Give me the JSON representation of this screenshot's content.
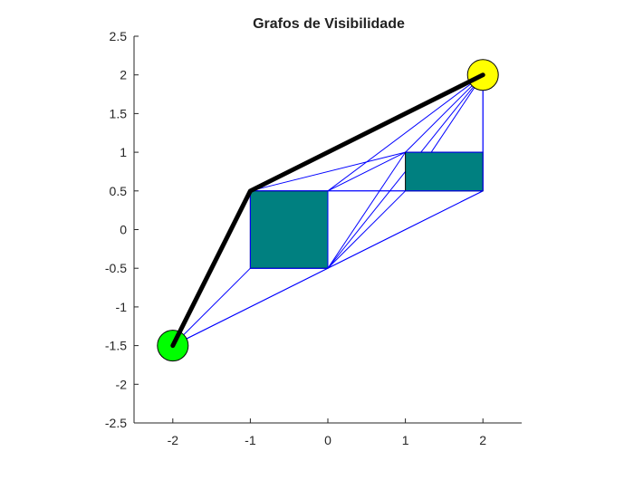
{
  "chart_data": {
    "type": "scatter",
    "title": "Grafos de Visibilidade",
    "xlabel": "",
    "ylabel": "",
    "xlim": [
      -2.5,
      2.5
    ],
    "ylim": [
      -2.5,
      2.5
    ],
    "x_ticks": [
      -2,
      -1,
      0,
      1,
      2
    ],
    "x_tick_labels": [
      "-2",
      "-1",
      "0",
      "1",
      "2"
    ],
    "y_ticks": [
      2.5,
      2,
      1.5,
      1,
      0.5,
      0,
      -0.5,
      -1,
      -1.5,
      -2,
      -2.5
    ],
    "y_tick_labels": [
      "2.5",
      "2",
      "1.5",
      "1",
      "0.5",
      "0",
      "-0.5",
      "-1",
      "-1.5",
      "-2",
      "-2.5"
    ],
    "grid": false,
    "obstacles": [
      {
        "name": "obstacle-1",
        "x": [
          -1,
          0
        ],
        "y": [
          -0.5,
          0.5
        ],
        "color": "#008080"
      },
      {
        "name": "obstacle-2",
        "x": [
          1,
          2
        ],
        "y": [
          0.5,
          1
        ],
        "color": "#008080"
      }
    ],
    "start": {
      "x": -2,
      "y": -1.5,
      "color": "#00ff00"
    },
    "goal": {
      "x": 2,
      "y": 2,
      "color": "#ffff00"
    },
    "visibility_edges_color": "#0000ff",
    "visibility_edges": [
      [
        [
          -2,
          -1.5
        ],
        [
          -1,
          0.5
        ]
      ],
      [
        [
          -2,
          -1.5
        ],
        [
          -1,
          -0.5
        ]
      ],
      [
        [
          -2,
          -1.5
        ],
        [
          0,
          -0.5
        ]
      ],
      [
        [
          -2,
          -1.5
        ],
        [
          2,
          0.5
        ]
      ],
      [
        [
          -1,
          0.5
        ],
        [
          0,
          0.5
        ]
      ],
      [
        [
          -1,
          0.5
        ],
        [
          1,
          1
        ]
      ],
      [
        [
          -1,
          0.5
        ],
        [
          2,
          2
        ]
      ],
      [
        [
          -1,
          0.5
        ],
        [
          -1,
          -0.5
        ]
      ],
      [
        [
          -1,
          -0.5
        ],
        [
          0,
          -0.5
        ]
      ],
      [
        [
          0,
          0.5
        ],
        [
          0,
          -0.5
        ]
      ],
      [
        [
          0,
          0.5
        ],
        [
          1,
          0.5
        ]
      ],
      [
        [
          0,
          0.5
        ],
        [
          1,
          1
        ]
      ],
      [
        [
          0,
          0.5
        ],
        [
          2,
          2
        ]
      ],
      [
        [
          0,
          -0.5
        ],
        [
          1,
          1
        ]
      ],
      [
        [
          0,
          -0.5
        ],
        [
          1,
          0.5
        ]
      ],
      [
        [
          0,
          -0.5
        ],
        [
          2,
          2
        ]
      ],
      [
        [
          0,
          -0.5
        ],
        [
          2,
          0.5
        ]
      ],
      [
        [
          1,
          1
        ],
        [
          2,
          2
        ]
      ],
      [
        [
          1,
          1
        ],
        [
          2,
          1
        ]
      ],
      [
        [
          1,
          0.5
        ],
        [
          2,
          0.5
        ]
      ],
      [
        [
          1,
          0.5
        ],
        [
          2,
          2
        ]
      ],
      [
        [
          2,
          1
        ],
        [
          2,
          2
        ]
      ],
      [
        [
          2,
          1
        ],
        [
          2,
          0.5
        ]
      ]
    ],
    "path_color": "#000000",
    "shortest_path": [
      [
        -2,
        -1.5
      ],
      [
        -1,
        0.5
      ],
      [
        2,
        2
      ]
    ]
  }
}
